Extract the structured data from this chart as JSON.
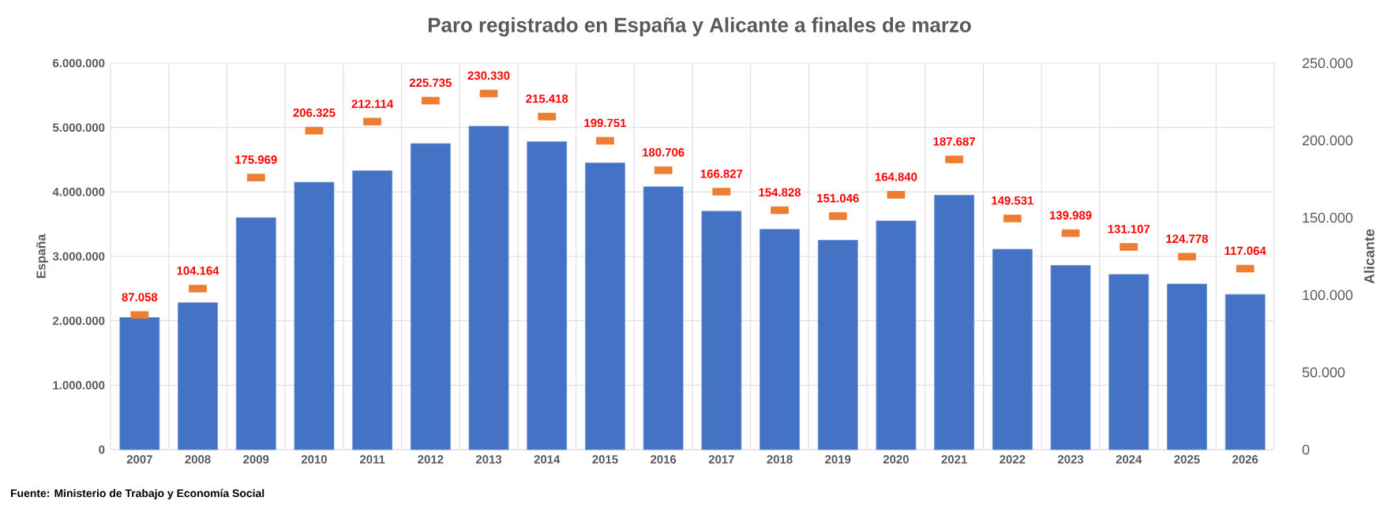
{
  "chart_data": {
    "type": "bar",
    "title": "Paro registrado en España y Alicante a finales de marzo",
    "ylabel": "España",
    "y2label": "Alicante",
    "annotations": [
      "Fuente: Ministerio de Trabajo y Economía Social"
    ],
    "categories": [
      "2007",
      "2008",
      "2009",
      "2010",
      "2011",
      "2012",
      "2013",
      "2014",
      "2015",
      "2016",
      "2017",
      "2018",
      "2019",
      "2020",
      "2021",
      "2022",
      "2023",
      "2024",
      "2025",
      "2026"
    ],
    "series": [
      {
        "name": null,
        "color": "#4472c4",
        "values": [
          2050000,
          2280000,
          3600000,
          4150000,
          4330000,
          4750000,
          5020000,
          4780000,
          4450000,
          4080000,
          3700000,
          3420000,
          3250000,
          3550000,
          3950000,
          3110000,
          2860000,
          2720000,
          2570000,
          2410000
        ]
      },
      {
        "name": null,
        "type": "scatter",
        "axis": "y2",
        "color": "#ed7d31",
        "values": [
          87058,
          104164,
          175969,
          206325,
          212114,
          225735,
          230330,
          215418,
          199751,
          180706,
          166827,
          154828,
          151046,
          164840,
          187687,
          149531,
          139989,
          131107,
          124778,
          117064
        ],
        "value_labels": [
          "87.058",
          "104.164",
          "175.969",
          "206.325",
          "212.114",
          "225.735",
          "230.330",
          "215.418",
          "199.751",
          "180.706",
          "166.827",
          "154.828",
          "151.046",
          "164.840",
          "187.687",
          "149.531",
          "139.989",
          "131.107",
          "124.778",
          "117.064"
        ]
      }
    ],
    "ylim": [
      0,
      6000000
    ],
    "yticks": [
      0,
      {
        "value": 1000000,
        "label": "1.000.000"
      },
      {
        "value": 2000000,
        "label": "2.000.000"
      },
      {
        "value": 3000000,
        "label": "3.000.000"
      },
      {
        "value": 4000000,
        "label": "4.000.000"
      },
      {
        "value": 5000000,
        "label": "5.000.000"
      },
      {
        "value": 6000000,
        "label": "6.000.000"
      }
    ],
    "y2lim": [
      0,
      250000
    ],
    "y2ticks": [
      0,
      {
        "value": 50000,
        "label": "50.000"
      },
      {
        "value": 100000,
        "label": "100.000"
      },
      {
        "value": 150000,
        "label": "150.000"
      },
      {
        "value": 200000,
        "label": "200.000"
      },
      {
        "value": 250000,
        "label": "250.000"
      }
    ],
    "grid": true
  }
}
